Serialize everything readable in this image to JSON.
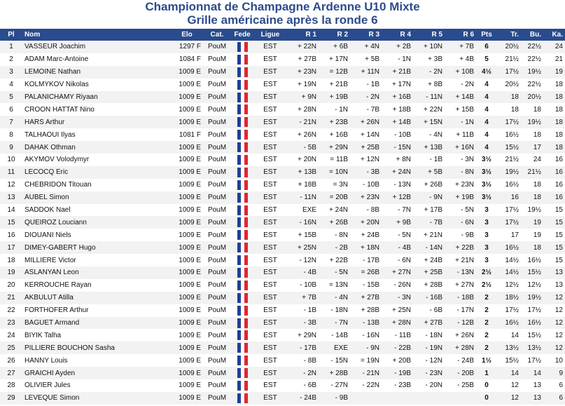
{
  "header": {
    "title": "Championnat de Champagne Ardenne U10 Mixte",
    "subtitle": "Grille américaine après la ronde 6"
  },
  "table": {
    "columns": [
      "Pl",
      "Nom",
      "Elo",
      "Cat.",
      "Fede",
      "Ligue",
      "R 1",
      "R 2",
      "R 3",
      "R 4",
      "R 5",
      "R 6",
      "Pts",
      "Tr.",
      "Bu.",
      "Ka."
    ],
    "rows": [
      [
        "1",
        "VASSEUR Joachim",
        "1297 F",
        "PouM",
        "EST",
        [
          "+ 22N",
          "+ 6B",
          "+ 4N",
          "+ 2B",
          "+ 10N",
          "+ 7B"
        ],
        "6",
        "20½",
        "22½",
        "24"
      ],
      [
        "2",
        "ADAM Marc-Antoine",
        "1084 F",
        "PouM",
        "EST",
        [
          "+ 27B",
          "+ 17N",
          "+ 5B",
          "- 1N",
          "+ 3B",
          "+ 4B"
        ],
        "5",
        "21½",
        "22½",
        "21"
      ],
      [
        "3",
        "LEMOINE Nathan",
        "1009 E",
        "PouM",
        "EST",
        [
          "+ 23N",
          "= 12B",
          "+ 11N",
          "+ 21B",
          "- 2N",
          "+ 10B"
        ],
        "4½",
        "17½",
        "19½",
        "19"
      ],
      [
        "4",
        "KOLMYKOV Nikolas",
        "1009 E",
        "PouM",
        "EST",
        [
          "+ 19N",
          "+ 21B",
          "- 1B",
          "+ 17N",
          "+ 8B",
          "- 2N"
        ],
        "4",
        "20½",
        "22½",
        "18"
      ],
      [
        "5",
        "PALANICHAMY Riyaan",
        "1009 E",
        "PouM",
        "EST",
        [
          "+ 9N",
          "+ 19B",
          "- 2N",
          "+ 16B",
          "- 11N",
          "+ 14B"
        ],
        "4",
        "18",
        "20½",
        "18"
      ],
      [
        "6",
        "CROON HATTAT Nino",
        "1009 E",
        "PouM",
        "EST",
        [
          "+ 28N",
          "- 1N",
          "- 7B",
          "+ 18B",
          "+ 22N",
          "+ 15B"
        ],
        "4",
        "18",
        "18",
        "18"
      ],
      [
        "7",
        "HARS Arthur",
        "1009 E",
        "PouM",
        "EST",
        [
          "- 21N",
          "+ 23B",
          "+ 26N",
          "+ 14B",
          "+ 15N",
          "- 1N"
        ],
        "4",
        "17½",
        "19½",
        "18"
      ],
      [
        "8",
        "TALHAOUI Ilyas",
        "1081 F",
        "PouM",
        "EST",
        [
          "+ 26N",
          "+ 16B",
          "+ 14N",
          "- 10B",
          "- 4N",
          "+ 11B"
        ],
        "4",
        "16½",
        "18",
        "18"
      ],
      [
        "9",
        "DAHAK Othman",
        "1009 E",
        "PouM",
        "EST",
        [
          "- 5B",
          "+ 29N",
          "+ 25B",
          "- 15N",
          "+ 13B",
          "+ 16N"
        ],
        "4",
        "15½",
        "17",
        "18"
      ],
      [
        "10",
        "AKYMOV Volodymyr",
        "1009 E",
        "PouM",
        "EST",
        [
          "+ 20N",
          "= 11B",
          "+ 12N",
          "+ 8N",
          "- 1B",
          "- 3N"
        ],
        "3½",
        "21½",
        "24",
        "16"
      ],
      [
        "11",
        "LECOCQ Eric",
        "1009 E",
        "PouM",
        "EST",
        [
          "+ 13B",
          "= 10N",
          "- 3B",
          "+ 24N",
          "+ 5B",
          "- 8N"
        ],
        "3½",
        "19½",
        "21½",
        "16"
      ],
      [
        "12",
        "CHEBRIDON Titouan",
        "1009 E",
        "PouM",
        "EST",
        [
          "+ 18B",
          "= 3N",
          "- 10B",
          "- 13N",
          "+ 26B",
          "+ 23N"
        ],
        "3½",
        "16½",
        "18",
        "16"
      ],
      [
        "13",
        "AUBEL Simon",
        "1009 E",
        "PouM",
        "EST",
        [
          "- 11N",
          "= 20B",
          "+ 23N",
          "+ 12B",
          "- 9N",
          "+ 19B"
        ],
        "3½",
        "16",
        "18",
        "16"
      ],
      [
        "14",
        "SADDOK Nael",
        "1009 E",
        "PouM",
        "EST",
        [
          "EXE",
          "+ 24N",
          "- 8B",
          "- 7N",
          "+ 17B",
          "- 5N"
        ],
        "3",
        "17½",
        "19½",
        "15"
      ],
      [
        "15",
        "QUEIROZ Louciann",
        "1009 E",
        "PouM",
        "EST",
        [
          "- 16N",
          "+ 26B",
          "+ 20N",
          "+ 9B",
          "- 7B",
          "- 6N"
        ],
        "3",
        "17½",
        "19",
        "15"
      ],
      [
        "16",
        "DIOUANI Niels",
        "1009 E",
        "PouM",
        "EST",
        [
          "+ 15B",
          "- 8N",
          "+ 24B",
          "- 5N",
          "+ 21N",
          "- 9B"
        ],
        "3",
        "17",
        "19",
        "15"
      ],
      [
        "17",
        "DIMEY-GABERT Hugo",
        "1009 E",
        "PouM",
        "EST",
        [
          "+ 25N",
          "- 2B",
          "+ 18N",
          "- 4B",
          "- 14N",
          "+ 22B"
        ],
        "3",
        "16½",
        "18",
        "15"
      ],
      [
        "18",
        "MILLIERE Victor",
        "1009 E",
        "PouM",
        "EST",
        [
          "- 12N",
          "+ 22B",
          "- 17B",
          "- 6N",
          "+ 24B",
          "+ 21N"
        ],
        "3",
        "14½",
        "16½",
        "15"
      ],
      [
        "19",
        "ASLANYAN Leon",
        "1009 E",
        "PouM",
        "EST",
        [
          "- 4B",
          "- 5N",
          "= 26B",
          "+ 27N",
          "+ 25B",
          "- 13N"
        ],
        "2½",
        "14½",
        "15½",
        "13"
      ],
      [
        "20",
        "KERROUCHE Rayan",
        "1009 E",
        "PouM",
        "EST",
        [
          "- 10B",
          "= 13N",
          "- 15B",
          "- 26N",
          "+ 28B",
          "+ 27N"
        ],
        "2½",
        "12½",
        "12½",
        "13"
      ],
      [
        "21",
        "AKBULUT Atilla",
        "1009 E",
        "PouM",
        "EST",
        [
          "+ 7B",
          "- 4N",
          "+ 27B",
          "- 3N",
          "- 16B",
          "- 18B"
        ],
        "2",
        "18½",
        "19½",
        "12"
      ],
      [
        "22",
        "FORTHOFER Arthur",
        "1009 E",
        "PouM",
        "EST",
        [
          "- 1B",
          "- 18N",
          "+ 28B",
          "+ 25N",
          "- 6B",
          "- 17N"
        ],
        "2",
        "17½",
        "17½",
        "12"
      ],
      [
        "23",
        "BAGUET Armand",
        "1009 E",
        "PouM",
        "EST",
        [
          "- 3B",
          "- 7N",
          "- 13B",
          "+ 28N",
          "+ 27B",
          "- 12B"
        ],
        "2",
        "16½",
        "16½",
        "12"
      ],
      [
        "24",
        "BIYIK Talha",
        "1009 E",
        "PouM",
        "EST",
        [
          "+ 29N",
          "- 14B",
          "- 16N",
          "- 11B",
          "- 18N",
          "+ 26N"
        ],
        "2",
        "14",
        "15½",
        "12"
      ],
      [
        "25",
        "PILLIERE BOUCHON Sasha",
        "1009 E",
        "PouM",
        "EST",
        [
          "- 17B",
          "EXE",
          "- 9N",
          "- 22B",
          "- 19N",
          "+ 28N"
        ],
        "2",
        "13½",
        "13½",
        "12"
      ],
      [
        "26",
        "HANNY Louis",
        "1009 E",
        "PouM",
        "EST",
        [
          "- 8B",
          "- 15N",
          "= 19N",
          "+ 20B",
          "- 12N",
          "- 24B"
        ],
        "1½",
        "15½",
        "17½",
        "10"
      ],
      [
        "27",
        "GRAICHI Ayden",
        "1009 E",
        "PouM",
        "EST",
        [
          "- 2N",
          "+ 28B",
          "- 21N",
          "- 19B",
          "- 23N",
          "- 20B"
        ],
        "1",
        "14",
        "14",
        "9"
      ],
      [
        "28",
        "OLIVIER Jules",
        "1009 E",
        "PouM",
        "EST",
        [
          "- 6B",
          "- 27N",
          "- 22N",
          "- 23B",
          "- 20N",
          "- 25B"
        ],
        "0",
        "12",
        "13",
        "6"
      ],
      [
        "29",
        "LEVEQUE Simon",
        "1009 E",
        "PouM",
        "EST",
        [
          "- 24B",
          "- 9B"
        ],
        "0",
        "12",
        "13",
        "6"
      ]
    ]
  }
}
